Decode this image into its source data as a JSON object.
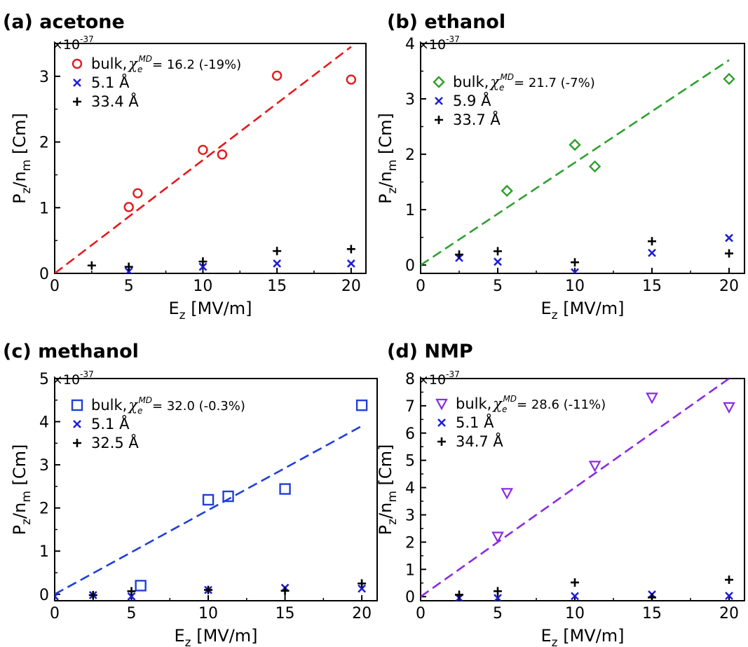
{
  "chart_data": [
    {
      "type": "scatter",
      "title": "(a) acetone",
      "xlabel": "E_z [MV/m]",
      "ylabel": "P_z/n_m [Cm]",
      "y_multiplier": "×10^-37",
      "xlim": [
        0,
        21
      ],
      "ylim": [
        0,
        3.5
      ],
      "xticks": [
        0,
        5,
        10,
        15,
        20
      ],
      "yticks": [
        0,
        1,
        2,
        3
      ],
      "color": "#e41a1c",
      "legend_position": "top-left",
      "series": [
        {
          "name": "bulk, χ_e^MD = 16.2 (-19%)",
          "legend_main": "bulk,",
          "legend_sym": "χ",
          "legend_sub": "e",
          "legend_sup": "MD",
          "legend_rest": "= 16.2 (-19%)",
          "marker": "circle",
          "color": "#e41a1c",
          "x": [
            5,
            5.6,
            10,
            11.3,
            15,
            20
          ],
          "y": [
            1.01,
            1.22,
            1.88,
            1.81,
            3.01,
            2.95
          ]
        },
        {
          "name": "5.1 Å",
          "marker": "x",
          "color": "#1f1fd8",
          "x": [
            5,
            10,
            15,
            20
          ],
          "y": [
            0.03,
            0.1,
            0.15,
            0.15
          ]
        },
        {
          "name": "33.4 Å",
          "marker": "plus",
          "color": "#000000",
          "x": [
            2.5,
            5,
            10,
            15,
            20
          ],
          "y": [
            0.12,
            0.1,
            0.18,
            0.34,
            0.37
          ]
        }
      ],
      "fit": {
        "x": [
          0,
          20
        ],
        "y": [
          0,
          3.45
        ],
        "color": "#e41a1c"
      }
    },
    {
      "type": "scatter",
      "title": "(b) ethanol",
      "xlabel": "E_z [MV/m]",
      "ylabel": "P_z/n_m [Cm]",
      "y_multiplier": "×10^-37",
      "xlim": [
        0,
        21
      ],
      "ylim": [
        -0.15,
        4
      ],
      "xticks": [
        0,
        5,
        10,
        15,
        20
      ],
      "yticks": [
        0,
        1,
        2,
        3,
        4
      ],
      "color": "#2ca02c",
      "legend_position": "top-left",
      "series": [
        {
          "name": "bulk, χ_e^MD = 21.7 (-7%)",
          "legend_main": "bulk,",
          "legend_sym": "χ",
          "legend_sub": "e",
          "legend_sup": "MD",
          "legend_rest": "= 21.7 (-7%)",
          "marker": "diamond",
          "color": "#2ca02c",
          "x": [
            5.6,
            10,
            11.3,
            20
          ],
          "y": [
            1.34,
            2.17,
            1.78,
            3.36
          ]
        },
        {
          "name": "5.9 Å",
          "marker": "x",
          "color": "#1f1fd8",
          "x": [
            2.5,
            5,
            10,
            15,
            20
          ],
          "y": [
            0.13,
            0.06,
            -0.13,
            0.22,
            0.49
          ]
        },
        {
          "name": "33.7 Å",
          "marker": "plus",
          "color": "#000000",
          "x": [
            2.5,
            5,
            10,
            15,
            20
          ],
          "y": [
            0.19,
            0.25,
            0.05,
            0.43,
            0.21
          ]
        }
      ],
      "fit": {
        "x": [
          0,
          20
        ],
        "y": [
          0,
          3.7
        ],
        "color": "#2ca02c"
      }
    },
    {
      "type": "scatter",
      "title": "(c) methanol",
      "xlabel": "E_z [MV/m]",
      "ylabel": "P_z/n_m [Cm]",
      "y_multiplier": "×10^-37",
      "xlim": [
        0,
        21
      ],
      "ylim": [
        -0.15,
        5
      ],
      "xticks": [
        0,
        5,
        10,
        15,
        20
      ],
      "yticks": [
        0,
        1,
        2,
        3,
        4,
        5
      ],
      "color": "#1f3fd8",
      "legend_position": "top-left",
      "series": [
        {
          "name": "bulk, χ_e^MD = 32.0 (-0.3%)",
          "legend_main": "bulk,",
          "legend_sym": "χ",
          "legend_sub": "e",
          "legend_sup": "MD",
          "legend_rest": "= 32.0 (-0.3%)",
          "marker": "square",
          "color": "#1f3fd8",
          "x": [
            5.6,
            10,
            11.3,
            15,
            20
          ],
          "y": [
            0.2,
            2.19,
            2.27,
            2.44,
            4.38
          ]
        },
        {
          "name": "5.1 Å",
          "marker": "x",
          "color": "#1f1fd8",
          "x": [
            0,
            2.5,
            5,
            10,
            15,
            20
          ],
          "y": [
            -0.05,
            -0.02,
            -0.05,
            0.1,
            0.15,
            0.13
          ]
        },
        {
          "name": "32.5 Å",
          "marker": "plus",
          "color": "#000000",
          "x": [
            2.5,
            5,
            10,
            15,
            20
          ],
          "y": [
            -0.02,
            0.07,
            0.1,
            0.08,
            0.25
          ]
        }
      ],
      "fit": {
        "x": [
          0,
          20
        ],
        "y": [
          0,
          3.9
        ],
        "color": "#1f3fd8"
      }
    },
    {
      "type": "scatter",
      "title": "(d) NMP",
      "xlabel": "E_z [MV/m]",
      "ylabel": "P_z/n_m [Cm]",
      "y_multiplier": "×10^-37",
      "xlim": [
        0,
        21
      ],
      "ylim": [
        -0.15,
        8
      ],
      "xticks": [
        0,
        5,
        10,
        15,
        20
      ],
      "yticks": [
        0,
        1,
        2,
        3,
        4,
        5,
        6,
        7,
        8
      ],
      "color": "#8a2be2",
      "legend_position": "top-left",
      "series": [
        {
          "name": "bulk, χ_e^MD = 28.6 (-11%)",
          "legend_main": "bulk,",
          "legend_sym": "χ",
          "legend_sub": "e",
          "legend_sup": "MD",
          "legend_rest": "= 28.6 (-11%)",
          "marker": "triangle-down",
          "color": "#8a2be2",
          "x": [
            5,
            5.6,
            11.3,
            15,
            20
          ],
          "y": [
            2.2,
            3.8,
            4.8,
            7.3,
            6.95
          ]
        },
        {
          "name": "5.1 Å",
          "marker": "x",
          "color": "#1f1fd8",
          "x": [
            2.5,
            5,
            10,
            15,
            20
          ],
          "y": [
            -0.05,
            -0.05,
            0.02,
            0.08,
            0.03
          ]
        },
        {
          "name": "34.7 Å",
          "marker": "plus",
          "color": "#000000",
          "x": [
            2.5,
            5,
            10,
            15,
            20
          ],
          "y": [
            0.07,
            0.2,
            0.52,
            -0.03,
            0.62
          ]
        }
      ],
      "fit": {
        "x": [
          0,
          20
        ],
        "y": [
          0,
          8.0
        ],
        "color": "#8a2be2"
      }
    }
  ]
}
